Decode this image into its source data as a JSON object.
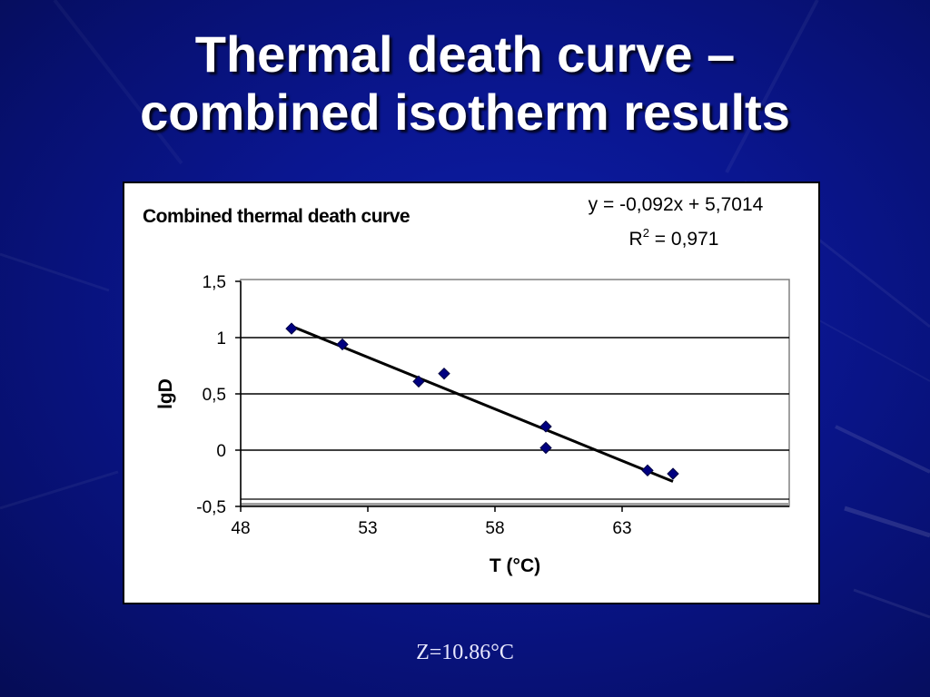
{
  "slide": {
    "title_line1": "Thermal death curve –",
    "title_line2": "combined isotherm results",
    "footnote": "Z=10.86°C"
  },
  "colors": {
    "background": "#0a1690",
    "marker": "#000080",
    "trendline": "#000000"
  },
  "chart_data": {
    "type": "scatter",
    "title": "Combined thermal death curve",
    "xlabel": "T (°C)",
    "ylabel": "lgD",
    "xlim": [
      48,
      66
    ],
    "ylim": [
      -0.5,
      1.5
    ],
    "xticks": [
      48,
      53,
      58,
      63
    ],
    "xtick_labels": [
      "48",
      "53",
      "58",
      "63"
    ],
    "yticks": [
      -0.5,
      0,
      0.5,
      1,
      1.5
    ],
    "ytick_labels": [
      "-0,5",
      "0",
      "0,5",
      "1",
      "1,5"
    ],
    "grid": "horizontal",
    "legend": "none",
    "series": [
      {
        "marker": "diamond",
        "points": [
          {
            "x": 50,
            "y": 1.08
          },
          {
            "x": 52,
            "y": 0.94
          },
          {
            "x": 55,
            "y": 0.61
          },
          {
            "x": 56,
            "y": 0.68
          },
          {
            "x": 60,
            "y": 0.21
          },
          {
            "x": 60,
            "y": 0.02
          },
          {
            "x": 64,
            "y": -0.18
          },
          {
            "x": 65,
            "y": -0.21
          }
        ]
      }
    ],
    "trendline": {
      "slope": -0.092,
      "intercept": 5.7014,
      "x_range": [
        50,
        65
      ],
      "equation": "y = -0,092x + 5,7014",
      "r2_prefix": "R",
      "r2_sup": "2",
      "r2_value": " = 0,971"
    }
  }
}
